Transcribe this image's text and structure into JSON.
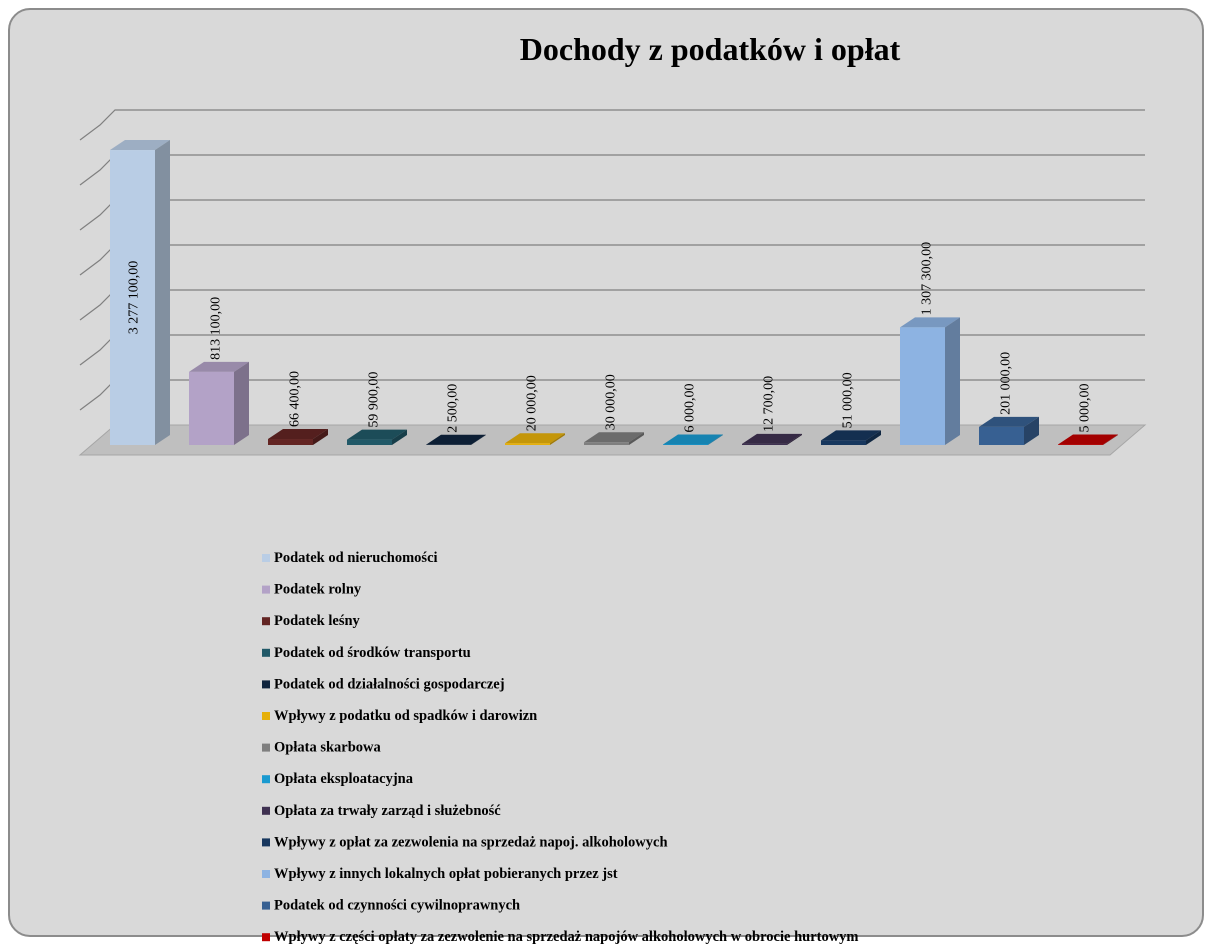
{
  "chart_data": {
    "type": "bar3d",
    "title": "Dochody z podatków i opłat",
    "categories": [
      null
    ],
    "ylim": [
      0,
      3500000
    ],
    "yticks": [
      0,
      500000,
      1000000,
      1500000,
      2000000,
      2500000,
      3000000,
      3500000
    ],
    "grid": true,
    "series": [
      {
        "name": "Podatek od nieruchomości",
        "color": "#b9cde5",
        "values": [
          3277100
        ],
        "value_labels": [
          "3 277 100,00"
        ]
      },
      {
        "name": "Podatek rolny",
        "color": "#b3a2c7",
        "values": [
          813100
        ],
        "value_labels": [
          "813 100,00"
        ]
      },
      {
        "name": "Podatek leśny",
        "color": "#632523",
        "values": [
          66400
        ],
        "value_labels": [
          "66 400,00"
        ]
      },
      {
        "name": "Podatek od środków transportu",
        "color": "#215968",
        "values": [
          59900
        ],
        "value_labels": [
          "59 900,00"
        ]
      },
      {
        "name": "Podatek od działalności gospodarczej",
        "color": "#0f243e",
        "values": [
          2500
        ],
        "value_labels": [
          "2 500,00"
        ]
      },
      {
        "name": "Wpływy z podatku od spadków i darowizn",
        "color": "#e6b00a",
        "values": [
          20000
        ],
        "value_labels": [
          "20 000,00"
        ]
      },
      {
        "name": "Opłata skarbowa",
        "color": "#7f7f7f",
        "values": [
          30000
        ],
        "value_labels": [
          "30 000,00"
        ]
      },
      {
        "name": "Opłata eksploatacyjna",
        "color": "#1a9ad0",
        "values": [
          6000
        ],
        "value_labels": [
          "6 000,00"
        ]
      },
      {
        "name": "Opłata za trwały zarząd i służebność",
        "color": "#3f3151",
        "values": [
          12700
        ],
        "value_labels": [
          "12 700,00"
        ]
      },
      {
        "name": "Wpływy z opłat za zezwolenia na sprzedaż napoj. alkoholowych",
        "color": "#17375e",
        "values": [
          51000
        ],
        "value_labels": [
          "51 000,00"
        ]
      },
      {
        "name": "Wpływy z innych lokalnych opłat pobieranych przez jst",
        "color": "#8db3e2",
        "values": [
          1307300
        ],
        "value_labels": [
          "1 307 300,00"
        ]
      },
      {
        "name": "Podatek od czynności cywilnoprawnych",
        "color": "#376092",
        "values": [
          201000
        ],
        "value_labels": [
          "201 000,00"
        ]
      },
      {
        "name": "Wpływy z części opłaty za zezwolenie na sprzedaż napojów alkoholowych w obrocie hurtowym",
        "color": "#c00000",
        "values": [
          5000
        ],
        "value_labels": [
          "5 000,00"
        ]
      }
    ]
  }
}
